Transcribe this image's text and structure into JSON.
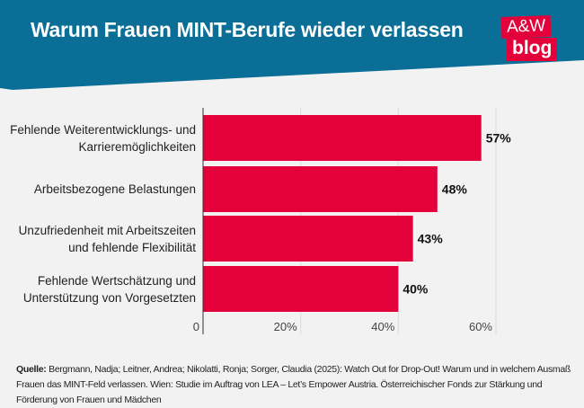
{
  "title": "Warum Frauen MINT-Berufe wieder verlassen",
  "logo": {
    "line1": "A&W",
    "line2": "blog"
  },
  "colors": {
    "header": "#0a6e96",
    "bar": "#e4003a",
    "background": "#f2f2f2"
  },
  "chart_data": {
    "type": "bar",
    "orientation": "horizontal",
    "categories": [
      [
        "Fehlende Weiterentwicklungs- und",
        "Karrieremöglichkeiten"
      ],
      [
        "Arbeitsbezogene Belastungen"
      ],
      [
        "Unzufriedenheit mit Arbeitszeiten",
        "und fehlende Flexibilität"
      ],
      [
        "Fehlende Wertschätzung und",
        "Unterstützung von Vorgesetzten"
      ]
    ],
    "values": [
      57,
      48,
      43,
      40
    ],
    "data_labels": [
      "57%",
      "48%",
      "43%",
      "40%"
    ],
    "xlim": [
      0,
      60
    ],
    "x_ticks": [
      "0",
      "20%",
      "40%",
      "60%"
    ],
    "grid": true
  },
  "source": {
    "label": "Quelle:",
    "text": " Bergmann, Nadja; Leitner, Andrea; Nikolatti, Ronja; Sorger, Claudia (2025): Watch Out for Drop-Out! Warum und in welchem Ausmaß Frauen das MINT-Feld verlassen. Wien: Studie im Auftrag von LEA – Let’s Empower Austria. Österreichischer Fonds zur Stärkung und Förderung von Frauen und Mädchen"
  }
}
